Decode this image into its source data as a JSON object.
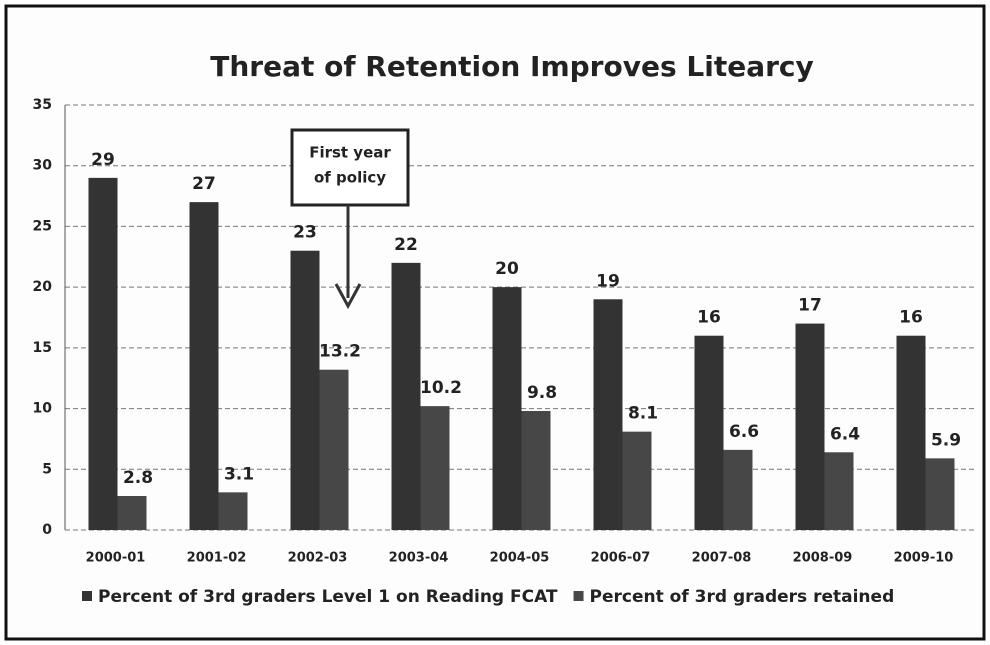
{
  "chart_data": {
    "type": "bar",
    "title": "Threat of Retention Improves Litearcy",
    "categories": [
      "2000-01",
      "2001-02",
      "2002-03",
      "2003-04",
      "2004-05",
      "2006-07",
      "2007-08",
      "2008-09",
      "2009-10"
    ],
    "series": [
      {
        "name": "Percent of 3rd graders Level 1 on Reading FCAT",
        "color": "#333333",
        "values": [
          29,
          27,
          23,
          22,
          20,
          19,
          16,
          17,
          16
        ]
      },
      {
        "name": "Percent of 3rd graders retained",
        "color": "#474747",
        "values": [
          2.8,
          3.1,
          13.2,
          10.2,
          9.8,
          8.1,
          6.6,
          6.4,
          5.9
        ]
      }
    ],
    "annotation": [
      "First year",
      "of policy"
    ],
    "ylim": [
      0,
      35
    ],
    "yticks": [
      0,
      5,
      10,
      15,
      20,
      25,
      30,
      35
    ],
    "grid": true,
    "legend": "bottom"
  }
}
